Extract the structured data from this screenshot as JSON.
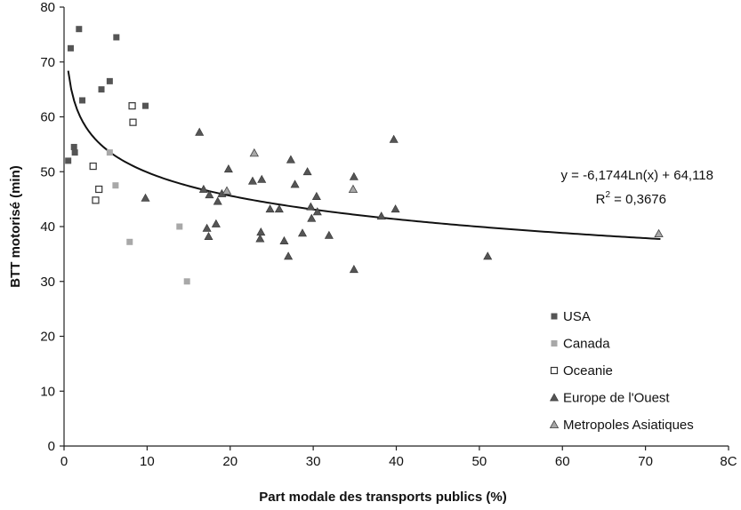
{
  "chart_data": {
    "type": "scatter",
    "xlabel": "Part modale des transports publics (%)",
    "ylabel": "BTT motorisé (min)",
    "xlim": [
      0,
      80
    ],
    "ylim": [
      0,
      80
    ],
    "x_ticks": [
      "0",
      "10",
      "20",
      "30",
      "40",
      "50",
      "60",
      "70",
      "8C"
    ],
    "y_ticks": [
      "0",
      "10",
      "20",
      "30",
      "40",
      "50",
      "60",
      "70",
      "80"
    ],
    "grid": false,
    "legend_position": "bottom-right",
    "series": [
      {
        "name": "USA",
        "marker": "square-filled",
        "color": "#555555",
        "points": [
          [
            0.5,
            52
          ],
          [
            0.8,
            72.5
          ],
          [
            1.2,
            54.5
          ],
          [
            1.3,
            53.5
          ],
          [
            1.8,
            76
          ],
          [
            2.2,
            63
          ],
          [
            4.5,
            65
          ],
          [
            5.5,
            66.5
          ],
          [
            6.3,
            74.5
          ],
          [
            9.8,
            62
          ]
        ]
      },
      {
        "name": "Canada",
        "marker": "square-filled",
        "color": "#a8a8a8",
        "points": [
          [
            5.5,
            53.5
          ],
          [
            6.2,
            47.5
          ],
          [
            7.9,
            37.2
          ],
          [
            13.9,
            40
          ],
          [
            14.8,
            30
          ]
        ]
      },
      {
        "name": "Oceanie",
        "marker": "square-open",
        "color": "#333333",
        "points": [
          [
            3.5,
            51
          ],
          [
            3.8,
            44.8
          ],
          [
            4.2,
            46.8
          ],
          [
            8.2,
            62
          ],
          [
            8.3,
            59
          ]
        ]
      },
      {
        "name": "Europe de l'Ouest",
        "marker": "triangle-filled",
        "color": "#555555",
        "points": [
          [
            9.8,
            45.2
          ],
          [
            16.3,
            57.2
          ],
          [
            16.8,
            46.8
          ],
          [
            17.2,
            39.7
          ],
          [
            17.4,
            38.2
          ],
          [
            17.5,
            45.8
          ],
          [
            18.3,
            40.5
          ],
          [
            18.5,
            44.6
          ],
          [
            19,
            46
          ],
          [
            19.8,
            50.5
          ],
          [
            22.7,
            48.3
          ],
          [
            23.6,
            37.8
          ],
          [
            23.7,
            39
          ],
          [
            23.8,
            48.6
          ],
          [
            24.8,
            43.2
          ],
          [
            25.9,
            43.2
          ],
          [
            26.5,
            37.4
          ],
          [
            27,
            34.6
          ],
          [
            27.3,
            52.2
          ],
          [
            27.8,
            47.7
          ],
          [
            28.7,
            38.8
          ],
          [
            29.3,
            50
          ],
          [
            29.7,
            43.6
          ],
          [
            29.8,
            41.5
          ],
          [
            30.4,
            45.5
          ],
          [
            30.5,
            42.7
          ],
          [
            31.9,
            38.4
          ],
          [
            34.9,
            49.1
          ],
          [
            34.9,
            32.2
          ],
          [
            38.2,
            41.9
          ],
          [
            39.7,
            55.9
          ],
          [
            39.9,
            43.2
          ],
          [
            51,
            34.6
          ]
        ]
      },
      {
        "name": "Metropoles Asiatiques",
        "marker": "triangle-light",
        "color": "#a8a8a8",
        "points": [
          [
            19.6,
            46.5
          ],
          [
            22.9,
            53.4
          ],
          [
            34.8,
            46.8
          ],
          [
            71.6,
            38.7
          ]
        ]
      }
    ],
    "trendline": {
      "type": "logarithmic",
      "a": -6.1744,
      "b": 64.118,
      "x_range": [
        0.5,
        71.8
      ]
    },
    "annotations": {
      "equation": "y = -6,1744Ln(x) + 64,118",
      "r2_prefix": "R",
      "r2_sup": "2",
      "r2_value": " = 0,3676"
    }
  }
}
